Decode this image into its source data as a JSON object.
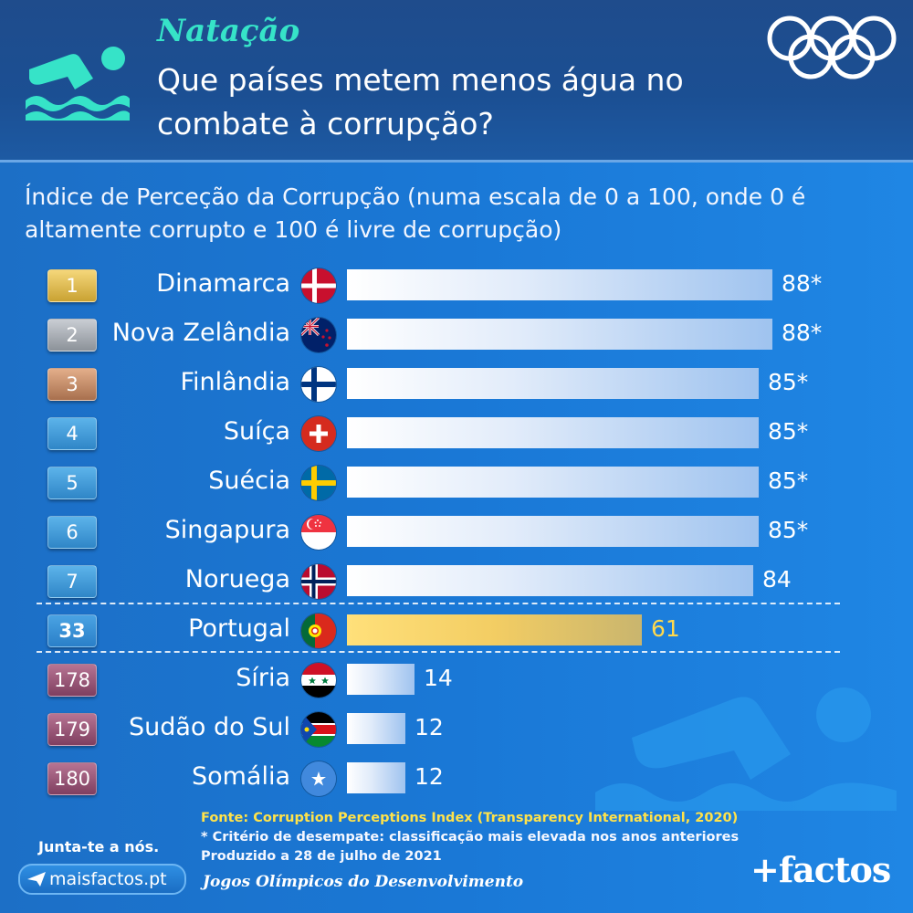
{
  "header": {
    "kicker": "Natação",
    "title": "Que países metem menos água no combate à corrupção?"
  },
  "chart_data": {
    "type": "bar",
    "title": "Índice de Perceção da Corrupção (numa escala de 0 a 100, onde 0 é altamente corrupto e 100 é livre de corrupção)",
    "xlim": [
      0,
      100
    ],
    "rows": [
      {
        "rank": "1",
        "country": "Dinamarca",
        "value": 88,
        "label": "88*",
        "flag": "denmark",
        "medal": "gold"
      },
      {
        "rank": "2",
        "country": "Nova Zelândia",
        "value": 88,
        "label": "88*",
        "flag": "new-zealand",
        "medal": "silver"
      },
      {
        "rank": "3",
        "country": "Finlândia",
        "value": 85,
        "label": "85*",
        "flag": "finland",
        "medal": "bronze"
      },
      {
        "rank": "4",
        "country": "Suíça",
        "value": 85,
        "label": "85*",
        "flag": "switzerland",
        "medal": "blue"
      },
      {
        "rank": "5",
        "country": "Suécia",
        "value": 85,
        "label": "85*",
        "flag": "sweden",
        "medal": "blue"
      },
      {
        "rank": "6",
        "country": "Singapura",
        "value": 85,
        "label": "85*",
        "flag": "singapore",
        "medal": "blue"
      },
      {
        "rank": "7",
        "country": "Noruega",
        "value": 84,
        "label": "84",
        "flag": "norway",
        "medal": "blue"
      },
      {
        "rank": "33",
        "country": "Portugal",
        "value": 61,
        "label": "61",
        "flag": "portugal",
        "medal": "pt",
        "highlight": true
      },
      {
        "rank": "178",
        "country": "Síria",
        "value": 14,
        "label": "14",
        "flag": "syria",
        "medal": "purple"
      },
      {
        "rank": "179",
        "country": "Sudão do Sul",
        "value": 12,
        "label": "12",
        "flag": "south-sudan",
        "medal": "purple"
      },
      {
        "rank": "180",
        "country": "Somália",
        "value": 12,
        "label": "12",
        "flag": "somalia",
        "medal": "purple"
      }
    ],
    "colors": {
      "bar": "#ffffff",
      "highlight": "#f3cd63",
      "highlight_text": "#ffd94d"
    }
  },
  "footer": {
    "source": "Fonte: Corruption Perceptions Index (Transparency International, 2020)",
    "note": "* Critério de desempate: classificação mais elevada nos anos anteriores",
    "produced": "Produzido a 28 de julho de 2021",
    "join": "Junta-te a nós.",
    "site": "maisfactos.pt",
    "program": "Jogos Olímpicos do Desenvolvimento",
    "brand": "+factos"
  }
}
